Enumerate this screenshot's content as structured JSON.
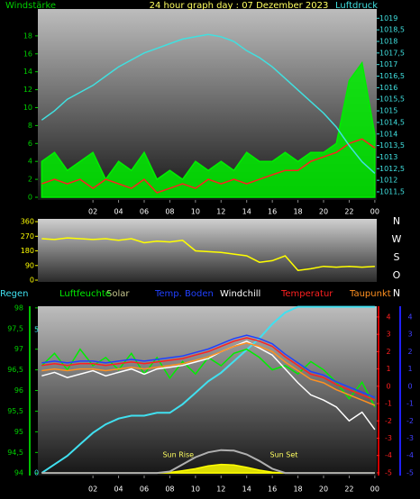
{
  "chart_data": [
    {
      "type": "line",
      "title": "24 hour graph day : 07 Dezember 2023",
      "y_label": "Windstärke",
      "y2_label": "Luftdruck",
      "x": [
        -2,
        -1,
        0,
        1,
        2,
        3,
        4,
        5,
        6,
        7,
        8,
        9,
        10,
        11,
        12,
        13,
        14,
        15,
        16,
        17,
        18,
        19,
        20,
        21,
        22,
        23,
        24
      ],
      "xlim": [
        -2.3,
        24.15
      ],
      "xticks": [
        {
          "value": 2,
          "label": "02"
        },
        {
          "value": 4,
          "label": "04"
        },
        {
          "value": 6,
          "label": "06"
        },
        {
          "value": 8,
          "label": "08"
        },
        10,
        12,
        14,
        16,
        18,
        20,
        22,
        {
          "value": 24,
          "label": "00"
        }
      ],
      "ylim": [
        -0.3,
        21
      ],
      "yticks": [
        0,
        2,
        4,
        6,
        8,
        10,
        12,
        14,
        16,
        18
      ],
      "y2lim": [
        1011.15,
        1019.4
      ],
      "y2ticks": [
        {
          "value": 1011.5,
          "label": "1011,5"
        },
        1012,
        {
          "value": 1012.5,
          "label": "1012,5"
        },
        1013,
        {
          "value": 1013.5,
          "label": "1013,5"
        },
        1014,
        {
          "value": 1014.5,
          "label": "1014,5"
        },
        1015,
        {
          "value": 1015.5,
          "label": "1015,5"
        },
        1016,
        {
          "value": 1016.5,
          "label": "1016,5"
        },
        1017,
        {
          "value": 1017.5,
          "label": "1017,5"
        },
        1018,
        {
          "value": 1018.5,
          "label": "1018,5"
        },
        1019
      ],
      "series": [
        {
          "color": "#00ee00",
          "style": "area",
          "values": [
            4,
            5,
            3,
            4,
            5,
            2,
            4,
            3,
            5,
            2,
            3,
            2,
            4,
            3,
            4,
            3,
            5,
            4,
            4,
            5,
            4,
            5,
            5,
            6,
            13,
            15,
            7
          ]
        },
        {
          "color": "#ff2020",
          "values": [
            1.5,
            2,
            1.5,
            2,
            1,
            2,
            1.5,
            1,
            2,
            0.5,
            1,
            1.5,
            1,
            2,
            1.5,
            2,
            1.5,
            2,
            2.5,
            3,
            3,
            4,
            4.5,
            5,
            6,
            6.5,
            5.5
          ]
        },
        {
          "color": "#40e0e0",
          "axis": "y2",
          "values": [
            1014.6,
            1015.0,
            1015.5,
            1015.8,
            1016.1,
            1016.5,
            1016.9,
            1017.2,
            1017.5,
            1017.7,
            1017.9,
            1018.1,
            1018.2,
            1018.3,
            1018.2,
            1018.0,
            1017.6,
            1017.3,
            1016.9,
            1016.4,
            1015.9,
            1015.4,
            1014.9,
            1014.3,
            1013.5,
            1012.8,
            1012.3
          ]
        }
      ]
    },
    {
      "type": "line",
      "x": [
        -2,
        -1,
        0,
        1,
        2,
        3,
        4,
        5,
        6,
        7,
        8,
        9,
        10,
        11,
        12,
        13,
        14,
        15,
        16,
        17,
        18,
        19,
        20,
        21,
        22,
        23,
        24
      ],
      "xlim": [
        -2.3,
        24.15
      ],
      "ylim": [
        -11,
        377
      ],
      "yticks": [
        360,
        270,
        180,
        90,
        0
      ],
      "direction_labels": [
        "N",
        "W",
        "S",
        "O",
        "N"
      ],
      "series": [
        {
          "color": "#ffff00",
          "values": [
            255,
            250,
            260,
            255,
            250,
            255,
            245,
            255,
            230,
            240,
            235,
            245,
            180,
            175,
            170,
            160,
            150,
            110,
            120,
            150,
            60,
            70,
            85,
            80,
            85,
            80,
            85
          ]
        }
      ]
    },
    {
      "type": "line",
      "x": [
        -2,
        -1,
        0,
        1,
        2,
        3,
        4,
        5,
        6,
        7,
        8,
        9,
        10,
        11,
        12,
        13,
        14,
        15,
        16,
        17,
        18,
        19,
        20,
        21,
        22,
        23,
        24
      ],
      "xlim": [
        -2.3,
        24.15
      ],
      "xticks": [
        {
          "value": 2,
          "label": "02"
        },
        {
          "value": 4,
          "label": "04"
        },
        {
          "value": 6,
          "label": "06"
        },
        {
          "value": 8,
          "label": "08"
        },
        10,
        12,
        14,
        16,
        18,
        20,
        22,
        {
          "value": 24,
          "label": "00"
        }
      ],
      "ylim": [
        93.94,
        98.04
      ],
      "yticks": [
        94,
        {
          "value": 94.5,
          "label": "94,5"
        },
        95,
        {
          "value": 95.5,
          "label": "95,5"
        },
        96,
        {
          "value": 96.5,
          "label": "96,5"
        },
        97,
        {
          "value": 97.5,
          "label": "97,5"
        },
        98
      ],
      "y2lim": [
        -5.16,
        4.62
      ],
      "y2ticks": [
        4,
        3,
        2,
        1,
        0,
        -1,
        -2,
        -3,
        -4,
        -5
      ],
      "y3lim": [
        -0.09,
        5.82
      ],
      "y3ticks": [
        0,
        5
      ],
      "annotations": [
        {
          "text": "Sun Rise",
          "x": 8.66
        },
        {
          "text": "Sun Set",
          "x": 16.9
        }
      ],
      "series": [
        {
          "name": "Regen",
          "color": "#40e0f0",
          "axis": "y3",
          "values": [
            0,
            0.3,
            0.6,
            1.0,
            1.4,
            1.7,
            1.9,
            2.0,
            2.0,
            2.1,
            2.1,
            2.4,
            2.8,
            3.2,
            3.5,
            3.9,
            4.3,
            4.7,
            5.2,
            5.6,
            5.8,
            5.8,
            5.8,
            5.8,
            5.8,
            5.8,
            5.8
          ]
        },
        {
          "name": "Luftfeuchte",
          "color": "#00ee00",
          "values": [
            96.6,
            96.9,
            96.5,
            97,
            96.6,
            96.8,
            96.5,
            96.9,
            96.4,
            96.8,
            96.3,
            96.7,
            96.4,
            96.8,
            96.6,
            96.9,
            97,
            96.8,
            96.5,
            96.6,
            96.4,
            96.7,
            96.5,
            96.2,
            95.8,
            96.2,
            95.6
          ]
        },
        {
          "name": "Solar",
          "color": "#ffff00",
          "axis": "y3",
          "style": "area",
          "values": [
            0,
            0,
            0,
            0,
            0,
            0,
            0,
            0,
            0,
            0,
            0.02,
            0.08,
            0.15,
            0.25,
            0.3,
            0.28,
            0.2,
            0.1,
            0.03,
            0,
            0,
            0,
            0,
            0,
            0,
            0,
            0
          ]
        },
        {
          "name": "Temp. Boden",
          "color": "#2040ff",
          "axis": "y2",
          "values": [
            1.35,
            1.45,
            1.35,
            1.45,
            1.45,
            1.35,
            1.45,
            1.55,
            1.45,
            1.55,
            1.65,
            1.75,
            1.95,
            2.15,
            2.45,
            2.75,
            2.95,
            2.75,
            2.45,
            1.85,
            1.35,
            0.85,
            0.65,
            0.25,
            -0.05,
            -0.35,
            -0.65
          ]
        },
        {
          "name": "Windchill",
          "color": "#ffffff",
          "axis": "y2",
          "values": [
            0.6,
            0.8,
            0.5,
            0.7,
            0.9,
            0.6,
            0.8,
            1.0,
            0.7,
            1.0,
            1.1,
            1.2,
            1.4,
            1.6,
            2.0,
            2.3,
            2.6,
            2.2,
            1.8,
            1.0,
            0.2,
            -0.5,
            -0.8,
            -1.2,
            -2.0,
            -1.5,
            -2.5
          ]
        },
        {
          "name": "Temperatur",
          "color": "#ff2020",
          "axis": "y2",
          "values": [
            1.2,
            1.3,
            1.2,
            1.3,
            1.3,
            1.2,
            1.3,
            1.4,
            1.3,
            1.4,
            1.5,
            1.6,
            1.8,
            2.0,
            2.3,
            2.6,
            2.8,
            2.6,
            2.3,
            1.7,
            1.2,
            0.7,
            0.5,
            0.1,
            -0.2,
            -0.5,
            -0.8
          ]
        },
        {
          "name": "Taupunkt",
          "color": "#ff9020",
          "axis": "y2",
          "values": [
            0.9,
            1.0,
            0.9,
            1.0,
            1.0,
            0.9,
            1.0,
            1.1,
            1.0,
            1.1,
            1.2,
            1.3,
            1.5,
            1.7,
            2.0,
            2.3,
            2.5,
            2.3,
            2.0,
            1.4,
            0.9,
            0.4,
            0.2,
            -0.2,
            -0.5,
            -0.8,
            -1.1
          ]
        },
        {
          "color": "#b0b0b0",
          "axis": "y3",
          "values": [
            0,
            0,
            0,
            0,
            0,
            0,
            0,
            0,
            0,
            0,
            0.05,
            0.3,
            0.55,
            0.72,
            0.8,
            0.78,
            0.65,
            0.42,
            0.15,
            0,
            0,
            0,
            0,
            0,
            0,
            0,
            0
          ]
        }
      ]
    }
  ]
}
